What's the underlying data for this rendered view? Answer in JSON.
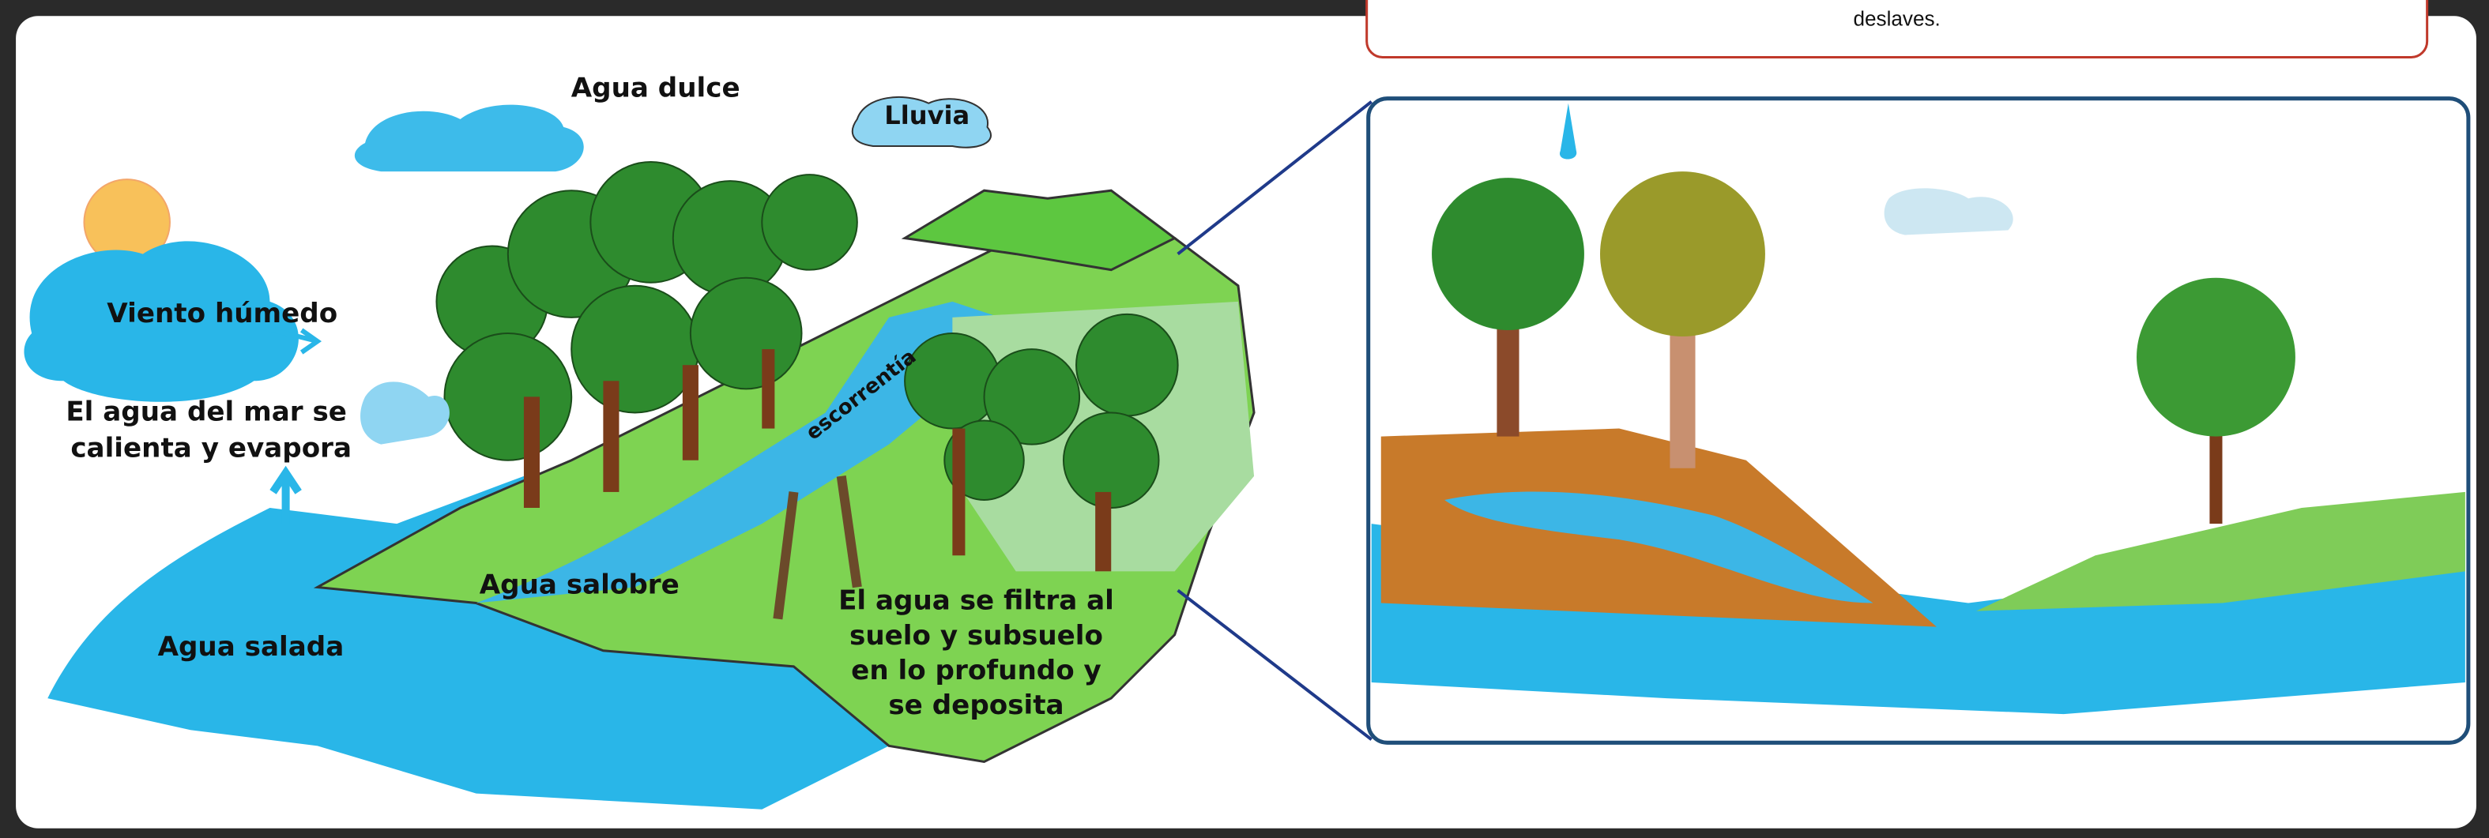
{
  "popup": {
    "text": "deslaves."
  },
  "labels": {
    "fresh_water": "Agua dulce",
    "rain": "Lluvia",
    "wind": "Viento húmedo",
    "evaporation": [
      "El agua del mar se",
      "calienta y evapora"
    ],
    "runoff": "escorrentía",
    "brackish_water": "Agua salobre",
    "salt_water": "Agua salada",
    "infiltration": [
      "El agua se filtra al",
      "suelo y subsuelo",
      "en lo profundo y",
      "se deposita"
    ]
  }
}
